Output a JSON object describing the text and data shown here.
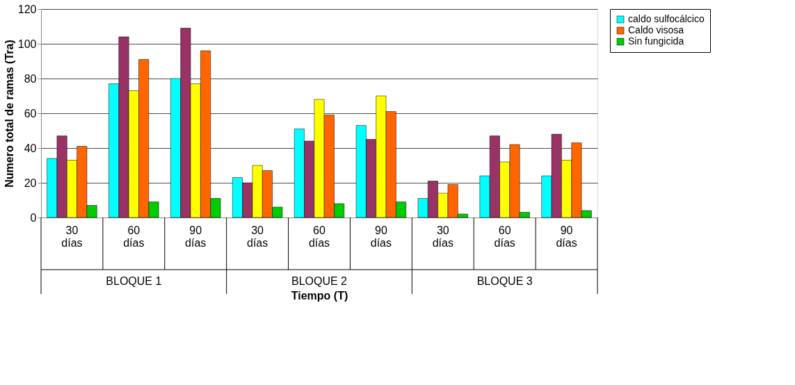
{
  "chart_data": {
    "type": "bar",
    "xlabel": "Tiempo (T)",
    "ylabel": "Numero total de ramas (Tra)",
    "categories": [
      "30 días",
      "60 días",
      "90 días",
      "30 días",
      "60 días",
      "90 días",
      "30 días",
      "60 días",
      "90 días"
    ],
    "series": [
      {
        "name": "caldo sulfocálcico",
        "color": "#00ffff",
        "values": [
          34,
          77,
          80,
          23,
          51,
          53,
          11,
          24,
          24
        ]
      },
      {
        "color": "#993366",
        "values": [
          47,
          104,
          109,
          20,
          44,
          45,
          21,
          47,
          48
        ]
      },
      {
        "color": "#ffff00",
        "values": [
          33,
          73,
          77,
          30,
          68,
          70,
          14,
          32,
          33
        ]
      },
      {
        "name": "Caldo visosa",
        "color": "#ff6600",
        "values": [
          41,
          91,
          96,
          27,
          59,
          61,
          19,
          42,
          43
        ]
      },
      {
        "name": "Sin fungicida",
        "color": "#00cc00",
        "values": [
          7,
          9,
          11,
          6,
          8,
          9,
          2,
          3,
          4
        ]
      }
    ],
    "annotations": [
      "BLOQUE 1",
      "BLOQUE 2",
      "BLOQUE 3"
    ],
    "ylim": [
      0,
      120
    ],
    "yticks": [
      0,
      20,
      40,
      60,
      80,
      100,
      120
    ],
    "grid": "y",
    "legend": "right"
  }
}
